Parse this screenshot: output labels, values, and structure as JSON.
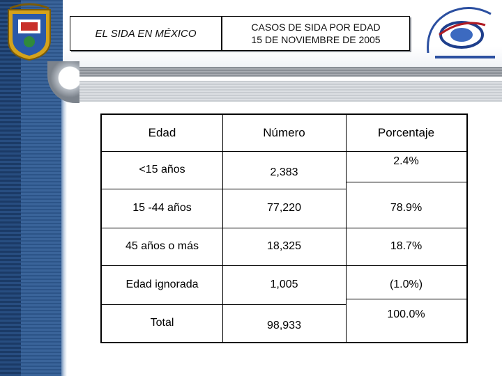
{
  "header": {
    "left_title": "EL SIDA EN MÉXICO",
    "right_title_line1": "CASOS DE SIDA POR EDAD",
    "right_title_line2": "15 DE NOVIEMBRE DE 2005"
  },
  "logos": {
    "left": "university-crest-icon",
    "right": "universidad-veracruzana-center-icon"
  },
  "table": {
    "headers": [
      "Edad",
      "Número",
      "Porcentaje"
    ],
    "rows": [
      {
        "edad": "<15 años",
        "numero": "2,383",
        "porcentaje": "2.4%"
      },
      {
        "edad": "15 -44 años",
        "numero": "77,220",
        "porcentaje": "78.9%"
      },
      {
        "edad": "45 años o más",
        "numero": "18,325",
        "porcentaje": "18.7%"
      },
      {
        "edad": "Edad ignorada",
        "numero": "1,005",
        "porcentaje": "(1.0%)"
      },
      {
        "edad": "Total",
        "numero": "98,933",
        "porcentaje": "100.0%"
      }
    ]
  },
  "colors": {
    "rail": "#1b3a66",
    "text": "#000000"
  }
}
